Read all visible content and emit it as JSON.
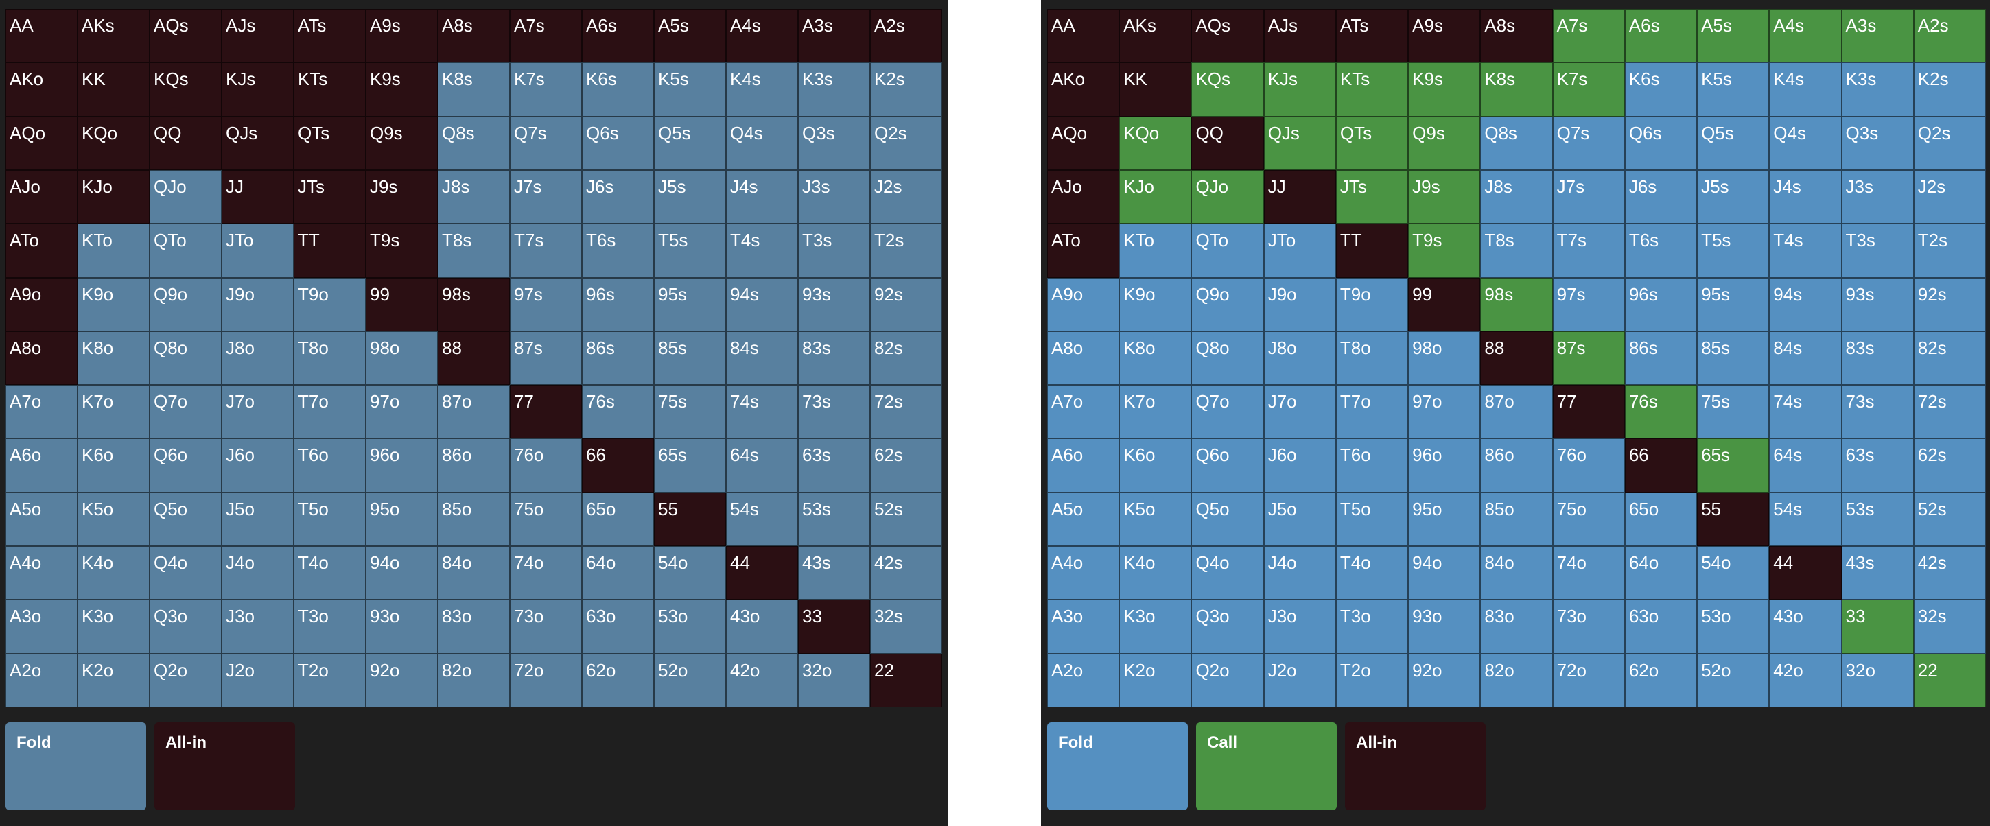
{
  "hands": [
    [
      "AA",
      "AKs",
      "AQs",
      "AJs",
      "ATs",
      "A9s",
      "A8s",
      "A7s",
      "A6s",
      "A5s",
      "A4s",
      "A3s",
      "A2s"
    ],
    [
      "AKo",
      "KK",
      "KQs",
      "KJs",
      "KTs",
      "K9s",
      "K8s",
      "K7s",
      "K6s",
      "K5s",
      "K4s",
      "K3s",
      "K2s"
    ],
    [
      "AQo",
      "KQo",
      "QQ",
      "QJs",
      "QTs",
      "Q9s",
      "Q8s",
      "Q7s",
      "Q6s",
      "Q5s",
      "Q4s",
      "Q3s",
      "Q2s"
    ],
    [
      "AJo",
      "KJo",
      "QJo",
      "JJ",
      "JTs",
      "J9s",
      "J8s",
      "J7s",
      "J6s",
      "J5s",
      "J4s",
      "J3s",
      "J2s"
    ],
    [
      "ATo",
      "KTo",
      "QTo",
      "JTo",
      "TT",
      "T9s",
      "T8s",
      "T7s",
      "T6s",
      "T5s",
      "T4s",
      "T3s",
      "T2s"
    ],
    [
      "A9o",
      "K9o",
      "Q9o",
      "J9o",
      "T9o",
      "99",
      "98s",
      "97s",
      "96s",
      "95s",
      "94s",
      "93s",
      "92s"
    ],
    [
      "A8o",
      "K8o",
      "Q8o",
      "J8o",
      "T8o",
      "98o",
      "88",
      "87s",
      "86s",
      "85s",
      "84s",
      "83s",
      "82s"
    ],
    [
      "A7o",
      "K7o",
      "Q7o",
      "J7o",
      "T7o",
      "97o",
      "87o",
      "77",
      "76s",
      "75s",
      "74s",
      "73s",
      "72s"
    ],
    [
      "A6o",
      "K6o",
      "Q6o",
      "J6o",
      "T6o",
      "96o",
      "86o",
      "76o",
      "66",
      "65s",
      "64s",
      "63s",
      "62s"
    ],
    [
      "A5o",
      "K5o",
      "Q5o",
      "J5o",
      "T5o",
      "95o",
      "85o",
      "75o",
      "65o",
      "55",
      "54s",
      "53s",
      "52s"
    ],
    [
      "A4o",
      "K4o",
      "Q4o",
      "J4o",
      "T4o",
      "94o",
      "84o",
      "74o",
      "64o",
      "54o",
      "44",
      "43s",
      "42s"
    ],
    [
      "A3o",
      "K3o",
      "Q3o",
      "J3o",
      "T3o",
      "93o",
      "83o",
      "73o",
      "63o",
      "53o",
      "43o",
      "33",
      "32s"
    ],
    [
      "A2o",
      "K2o",
      "Q2o",
      "J2o",
      "T2o",
      "92o",
      "82o",
      "72o",
      "62o",
      "52o",
      "42o",
      "32o",
      "22"
    ]
  ],
  "colors": {
    "fold_left": "#58809f",
    "fold_right": "#5590c1",
    "call": "#4a9443",
    "all_in": "#2b0f13",
    "panel_bg": "#1f1f1f"
  },
  "left_chart": {
    "actions": [
      "AAAAAAAAAAAAA",
      "AAAAAAFFFFFFF",
      "AAAAAAFFFFFFF",
      "AAFAAAFFFFFFF",
      "AFFFAAFFFFFFF",
      "AFFFFAAFFFFFF",
      "AFFFFFAFFFFFF",
      "FFFFFFFAFFFFF",
      "FFFFFFFFAFFFF",
      "FFFFFFFFFAFFF",
      "FFFFFFFFFFAFF",
      "FFFFFFFFFFFAF",
      "FFFFFFFFFFFFA"
    ],
    "legend": [
      {
        "label": "Fold",
        "action": "F"
      },
      {
        "label": "All-in",
        "action": "A"
      }
    ]
  },
  "right_chart": {
    "actions": [
      "AAAAAAACCCCCC",
      "AACCCCCCFFFFF",
      "ACACCCFFFFFFF",
      "ACCACCFFFFFFF",
      "AFFFACFFFFFFF",
      "FFFFFACFFFFFF",
      "FFFFFFACFFFFF",
      "FFFFFFFACFFFF",
      "FFFFFFFFACFFF",
      "FFFFFFFFFAFFF",
      "FFFFFFFFFFAFF",
      "FFFFFFFFFFFCF",
      "FFFFFFFFFFFFC"
    ],
    "legend": [
      {
        "label": "Fold",
        "action": "F"
      },
      {
        "label": "Call",
        "action": "C"
      },
      {
        "label": "All-in",
        "action": "A"
      }
    ]
  }
}
